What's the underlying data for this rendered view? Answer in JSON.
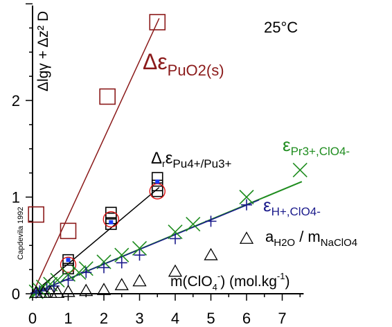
{
  "chart_data": {
    "type": "scatter",
    "temperature_label": "25°C",
    "ylabel": "Δlgγ + Δz² D",
    "xlabel_main": "m(ClO",
    "xlabel_sub": "4",
    "xlabel_sup": "-",
    "xlabel_units": ") (mol.kg",
    "xlabel_units_sup": "-1",
    "xlabel_close": ")",
    "source_label": "Capdevila 1992",
    "xlim": [
      0,
      7.6
    ],
    "ylim": [
      0,
      3.0
    ],
    "x_ticks": [
      "0",
      "1",
      "2",
      "3",
      "4",
      "5",
      "6",
      "7"
    ],
    "y_ticks": [
      "0",
      "1",
      "2"
    ],
    "series": [
      {
        "key": "puo2",
        "name_main": "Δε",
        "name_sub": "PuO2(s)",
        "color": "#8b1a1a",
        "marker": "square",
        "points": [
          [
            0.1,
            0.82
          ],
          [
            1.0,
            0.65
          ],
          [
            2.1,
            2.04
          ],
          [
            3.5,
            2.81
          ]
        ],
        "fit": [
          [
            0.0,
            0.0
          ],
          [
            3.55,
            2.85
          ]
        ]
      },
      {
        "key": "pu43",
        "name_main": "Δ",
        "name_sub_r": "r",
        "name_eps": "ε",
        "name_sub": "Pu4+/Pu3+",
        "color": "#000000",
        "marker": "square",
        "points": [
          [
            1.0,
            0.35
          ],
          [
            1.0,
            0.26
          ],
          [
            2.2,
            0.84
          ],
          [
            2.2,
            0.72
          ],
          [
            2.2,
            0.78
          ],
          [
            3.5,
            1.2
          ],
          [
            3.5,
            1.06
          ],
          [
            3.5,
            1.12
          ]
        ],
        "circles": [
          [
            1.0,
            0.3
          ],
          [
            2.2,
            0.77
          ],
          [
            3.5,
            1.06
          ]
        ],
        "blue_dots": [
          [
            1.0,
            0.35
          ],
          [
            2.2,
            0.74
          ],
          [
            3.5,
            1.16
          ]
        ],
        "fit": [
          [
            0.0,
            0.0
          ],
          [
            3.55,
            1.1
          ]
        ]
      },
      {
        "key": "pr_clo4",
        "name_main": "ε",
        "name_sub": "Pr3+,ClO4-",
        "color": "#1e8c1e",
        "marker": "x",
        "points": [
          [
            0.1,
            0.02
          ],
          [
            0.2,
            0.04
          ],
          [
            0.3,
            0.07
          ],
          [
            0.5,
            0.1
          ],
          [
            0.7,
            0.14
          ],
          [
            1.0,
            0.2
          ],
          [
            1.3,
            0.22
          ],
          [
            1.5,
            0.26
          ],
          [
            2.0,
            0.33
          ],
          [
            2.5,
            0.4
          ],
          [
            3.0,
            0.47
          ],
          [
            4.0,
            0.64
          ],
          [
            4.5,
            0.72
          ],
          [
            6.0,
            1.0
          ],
          [
            7.5,
            1.28
          ]
        ],
        "fit": [
          [
            0.0,
            0.0
          ],
          [
            7.55,
            1.16
          ]
        ]
      },
      {
        "key": "h_clo4",
        "name_main": "ε",
        "name_sub": "H+,ClO4-",
        "color": "#1a1a8b",
        "marker": "plus",
        "points": [
          [
            0.1,
            0.01
          ],
          [
            0.2,
            0.03
          ],
          [
            0.4,
            0.05
          ],
          [
            0.6,
            0.08
          ],
          [
            1.0,
            0.14
          ],
          [
            1.5,
            0.22
          ],
          [
            2.0,
            0.27
          ],
          [
            2.5,
            0.32
          ],
          [
            3.0,
            0.4
          ],
          [
            4.0,
            0.57
          ],
          [
            5.0,
            0.75
          ],
          [
            6.0,
            0.92
          ]
        ],
        "fit": [
          [
            0.0,
            0.0
          ],
          [
            6.35,
            0.97
          ]
        ]
      },
      {
        "key": "water",
        "name_main": "a",
        "name_sub": "H2O",
        "name_mid": " / m",
        "name_sub2": "NaClO4",
        "color": "#000000",
        "marker": "triangle",
        "points": [
          [
            0.1,
            0.01
          ],
          [
            0.3,
            0.01
          ],
          [
            0.5,
            0.01
          ],
          [
            0.7,
            0.01
          ],
          [
            1.0,
            0.02
          ],
          [
            1.5,
            0.03
          ],
          [
            2.0,
            0.04
          ],
          [
            2.5,
            0.09
          ],
          [
            3.0,
            0.13
          ],
          [
            4.0,
            0.23
          ],
          [
            5.0,
            0.4
          ],
          [
            6.0,
            0.57
          ]
        ]
      }
    ]
  }
}
